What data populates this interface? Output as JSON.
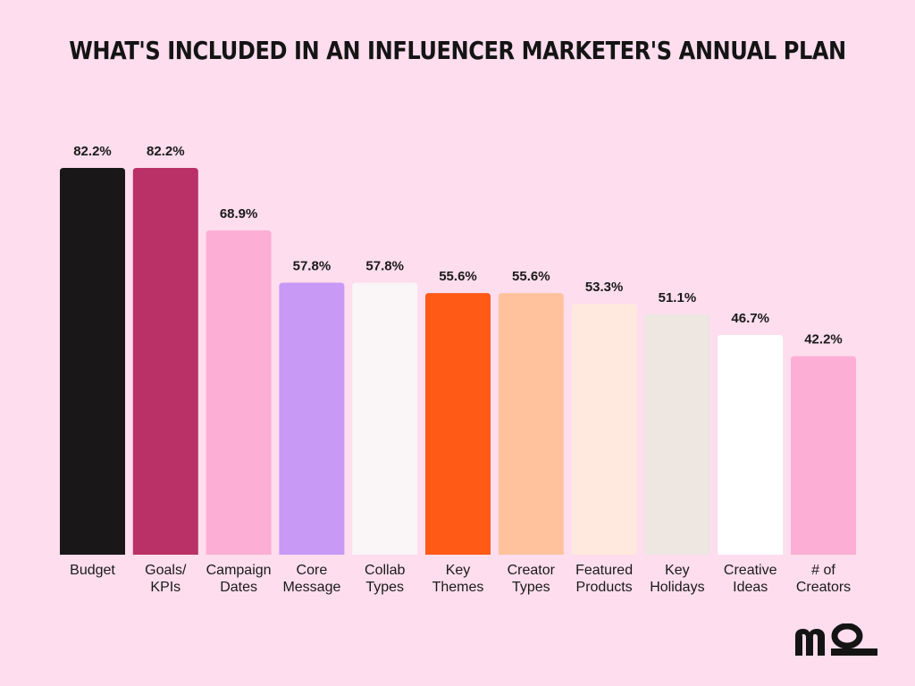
{
  "chart_data": {
    "type": "bar",
    "title": "WHAT'S INCLUDED IN AN INFLUENCER MARKETER'S ANNUAL PLAN",
    "categories": [
      "Budget",
      "Goals/\nKPIs",
      "Campaign\nDates",
      "Core\nMessage",
      "Collab\nTypes",
      "Key\nThemes",
      "Creator\nTypes",
      "Featured\nProducts",
      "Key\nHolidays",
      "Creative\nIdeas",
      "# of\nCreators"
    ],
    "values": [
      82.2,
      82.2,
      68.9,
      57.8,
      57.8,
      55.6,
      55.6,
      53.3,
      51.1,
      46.7,
      42.2
    ],
    "value_labels": [
      "82.2%",
      "82.2%",
      "68.9%",
      "57.8%",
      "57.8%",
      "55.6%",
      "55.6%",
      "53.3%",
      "51.1%",
      "46.7%",
      "42.2%"
    ],
    "colors": [
      "#1A1719",
      "#B93166",
      "#FDAED4",
      "#C899F5",
      "#FAF5F6",
      "#FF5B17",
      "#FFC29D",
      "#FFE8DD",
      "#EDE6E1",
      "#FFFFFF",
      "#FDAED4"
    ],
    "ylim": [
      0,
      100
    ],
    "grid": false,
    "legend": "none"
  },
  "logo": {
    "text": "mo",
    "name": "mo-logo-icon"
  }
}
